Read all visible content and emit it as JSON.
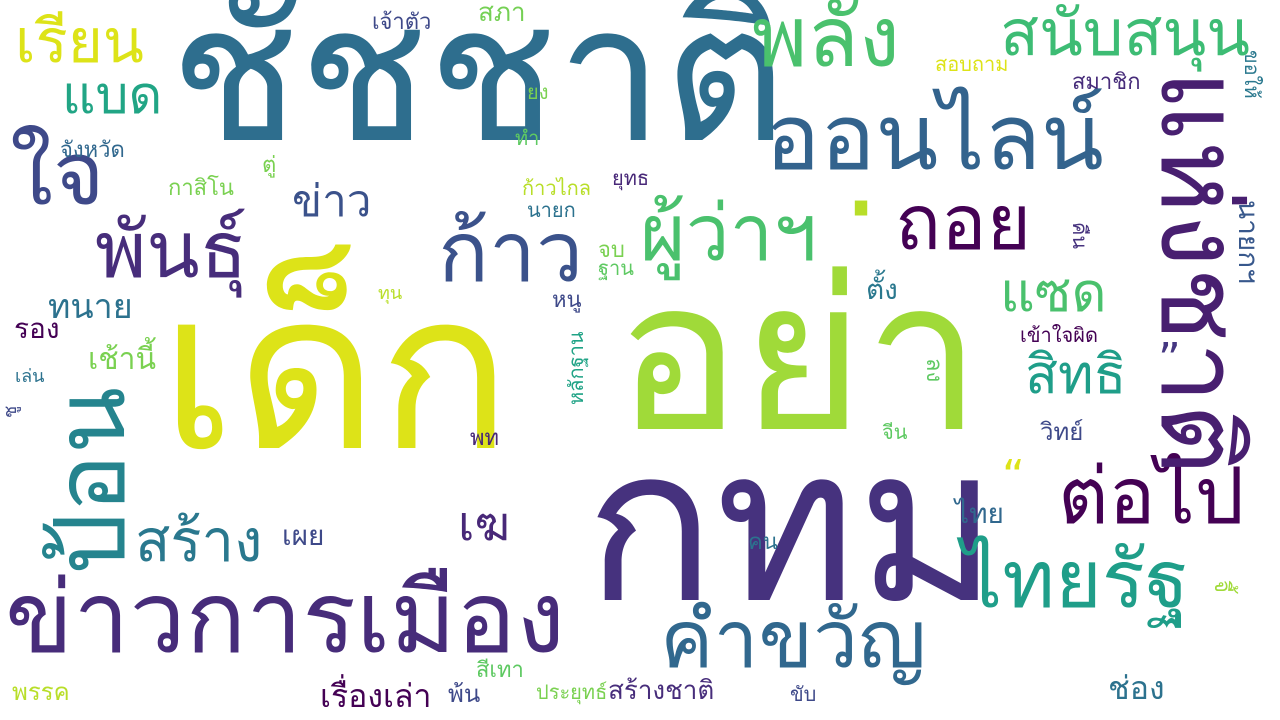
{
  "words": [
    {
      "id": "chatchart",
      "text": "ชัชชาติ",
      "color": "#2e6e8e"
    },
    {
      "id": "dek",
      "text": "เด็ก",
      "color": "#dde318"
    },
    {
      "id": "ya",
      "text": "อย่า",
      "color": "#a0da39"
    },
    {
      "id": "kthm",
      "text": "กทม",
      "color": "#46327e"
    },
    {
      "id": "khao-kan-mueang",
      "text": "ข่าวการเมือง",
      "color": "#472c7a"
    },
    {
      "id": "online",
      "text": "ออนไลน์",
      "color": "#33638d"
    },
    {
      "id": "phalang",
      "text": "พลัง",
      "color": "#4ac16d"
    },
    {
      "id": "sanapsanun",
      "text": "สนับสนุน",
      "color": "#3dbc74"
    },
    {
      "id": "haengchat",
      "text": "แห่งชาติ",
      "color": "#481f70"
    },
    {
      "id": "toi",
      "text": "ถอย",
      "color": "#440154"
    },
    {
      "id": "kao",
      "text": "ก้าว",
      "color": "#3b528b"
    },
    {
      "id": "phuwa",
      "text": "ผู้ว่าฯ",
      "color": "#4ac16d"
    },
    {
      "id": "phan",
      "text": "พันธุ์",
      "color": "#472d7b"
    },
    {
      "id": "chai",
      "text": "ใจ",
      "color": "#3e4989"
    },
    {
      "id": "rian",
      "text": "เรียน",
      "color": "#dde318"
    },
    {
      "id": "baet",
      "text": "แบด",
      "color": "#21a585"
    },
    {
      "id": "tor-pai",
      "text": "ต่อไป",
      "color": "#440154"
    },
    {
      "id": "thairath",
      "text": "ไทยรัฐ",
      "color": "#1f9e89"
    },
    {
      "id": "khamkhwan",
      "text": "คำขวัญ",
      "color": "#31688e"
    },
    {
      "id": "sang",
      "text": "สร้าง",
      "color": "#2a788e"
    },
    {
      "id": "phon",
      "text": "ป้อน",
      "color": "#25848e"
    },
    {
      "id": "saet",
      "text": "แซด",
      "color": "#4ac16d"
    },
    {
      "id": "sit",
      "text": "สิทธิ",
      "color": "#1f9e89"
    },
    {
      "id": "khao",
      "text": "ข่าว",
      "color": "#3b528b"
    },
    {
      "id": "thanai",
      "text": "ทนาย",
      "color": "#2c728e"
    },
    {
      "id": "rong",
      "text": "รอง",
      "color": "#440154"
    },
    {
      "id": "chaoni",
      "text": "เช้านี้",
      "color": "#7ad151"
    },
    {
      "id": "changwat",
      "text": "จังหวัด",
      "color": "#31688e"
    },
    {
      "id": "kasino",
      "text": "กาสิโน",
      "color": "#7ad151"
    },
    {
      "id": "tu",
      "text": "ตู่",
      "color": "#7ad151"
    },
    {
      "id": "jaotua",
      "text": "เจ้าตัว",
      "color": "#3e4989"
    },
    {
      "id": "sapha",
      "text": "สภา",
      "color": "#75d054"
    },
    {
      "id": "sopt-tham",
      "text": "สอบถาม",
      "color": "#dde318"
    },
    {
      "id": "samachik",
      "text": "สมาชิก",
      "color": "#472c7a"
    },
    {
      "id": "kho-hai",
      "text": "ขอให้",
      "color": "#2a788e"
    },
    {
      "id": "yong",
      "text": "ยง",
      "color": "#7ad151"
    },
    {
      "id": "tham",
      "text": "ทำ",
      "color": "#5ec962"
    },
    {
      "id": "kao-klai",
      "text": "ก้าวไกล",
      "color": "#b8de29"
    },
    {
      "id": "yut",
      "text": "ยุทธ",
      "color": "#482878"
    },
    {
      "id": "nayok",
      "text": "นายก",
      "color": "#2c728e"
    },
    {
      "id": "jop",
      "text": "จบ",
      "color": "#7ad151"
    },
    {
      "id": "than",
      "text": "ฐาน",
      "color": "#5ec962"
    },
    {
      "id": "thun",
      "text": "ทุน",
      "color": "#b8de29"
    },
    {
      "id": "nu",
      "text": "หนู",
      "color": "#3e4989"
    },
    {
      "id": "tang",
      "text": "ตั้ง",
      "color": "#2a788e"
    },
    {
      "id": "nayok-kh",
      "text": "นายกฯ",
      "color": "#38588c"
    },
    {
      "id": "khuen",
      "text": "คืน",
      "color": "#46327e"
    },
    {
      "id": "khao-jai-phit",
      "text": "เข้าใจผิด",
      "color": "#440154"
    },
    {
      "id": "quote-close",
      "text": "”",
      "color": "#453781"
    },
    {
      "id": "quote-open",
      "text": "“",
      "color": "#dde318"
    },
    {
      "id": "len",
      "text": "เล่น",
      "color": "#2c728e"
    },
    {
      "id": "chu",
      "text": "ชู",
      "color": "#3e4989"
    },
    {
      "id": "lakthan",
      "text": "หลักฐาน",
      "color": "#20a386"
    },
    {
      "id": "long",
      "text": "ลง",
      "color": "#5ec962"
    },
    {
      "id": "wit",
      "text": "วิทย์",
      "color": "#3e4989"
    },
    {
      "id": "jin",
      "text": "จีน",
      "color": "#5ec962"
    },
    {
      "id": "phot",
      "text": "พท",
      "color": "#482878"
    },
    {
      "id": "thai",
      "text": "ไทย",
      "color": "#31688e"
    },
    {
      "id": "phoei",
      "text": "เผย",
      "color": "#3e4989"
    },
    {
      "id": "ke",
      "text": "เฆ",
      "color": "#482878"
    },
    {
      "id": "khon",
      "text": "คน",
      "color": "#2c728e"
    },
    {
      "id": "jee",
      "text": "จี้",
      "color": "#a0da39"
    },
    {
      "id": "chong",
      "text": "ช่อง",
      "color": "#2c728e"
    },
    {
      "id": "phak",
      "text": "พรรค",
      "color": "#b8de29"
    },
    {
      "id": "si-thao",
      "text": "สีเทา",
      "color": "#5ec962"
    },
    {
      "id": "phon-pn",
      "text": "พ้น",
      "color": "#3e4989"
    },
    {
      "id": "rueang-lao",
      "text": "เรื่องเล่า",
      "color": "#440154"
    },
    {
      "id": "prayut",
      "text": "ประยุทธ์",
      "color": "#7ad151"
    },
    {
      "id": "sang-chat",
      "text": "สร้างชาติ",
      "color": "#472d7b"
    },
    {
      "id": "khap",
      "text": "ขับ",
      "color": "#3e4989"
    },
    {
      "id": "dot",
      "text": "·",
      "color": "#b8de29"
    }
  ]
}
